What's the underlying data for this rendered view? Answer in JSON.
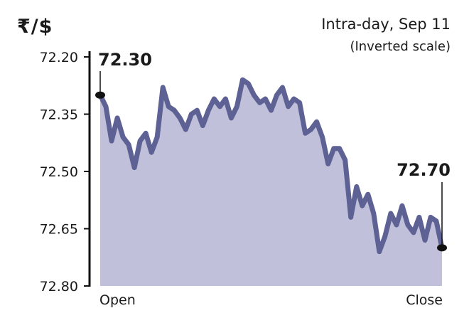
{
  "chart_data": {
    "type": "area",
    "unit_label": "₹/$",
    "title": "Intra-day, Sep 11",
    "subtitle": "(Inverted scale)",
    "y_inverted": true,
    "ylim": [
      72.2,
      72.8
    ],
    "yticks": [
      "72.20",
      "72.35",
      "72.50",
      "72.65",
      "72.80"
    ],
    "xticks": [
      "Open",
      "Close"
    ],
    "grid": false,
    "annotations": {
      "open": "72.30",
      "close": "72.70"
    },
    "values": [
      72.3,
      72.33,
      72.42,
      72.36,
      72.41,
      72.43,
      72.49,
      72.42,
      72.4,
      72.45,
      72.41,
      72.28,
      72.33,
      72.34,
      72.36,
      72.39,
      72.35,
      72.34,
      72.38,
      72.34,
      72.31,
      72.33,
      72.31,
      72.36,
      72.33,
      72.26,
      72.27,
      72.3,
      72.32,
      72.31,
      72.34,
      72.3,
      72.28,
      72.33,
      72.31,
      72.32,
      72.4,
      72.39,
      72.37,
      72.41,
      72.48,
      72.44,
      72.44,
      72.47,
      72.62,
      72.54,
      72.59,
      72.56,
      72.61,
      72.71,
      72.67,
      72.61,
      72.64,
      72.59,
      72.64,
      72.66,
      72.62,
      72.68,
      72.62,
      72.63,
      72.7
    ],
    "colors": {
      "fill": "#c0c0da",
      "line": "#5d6194",
      "marker": "#111111"
    }
  }
}
